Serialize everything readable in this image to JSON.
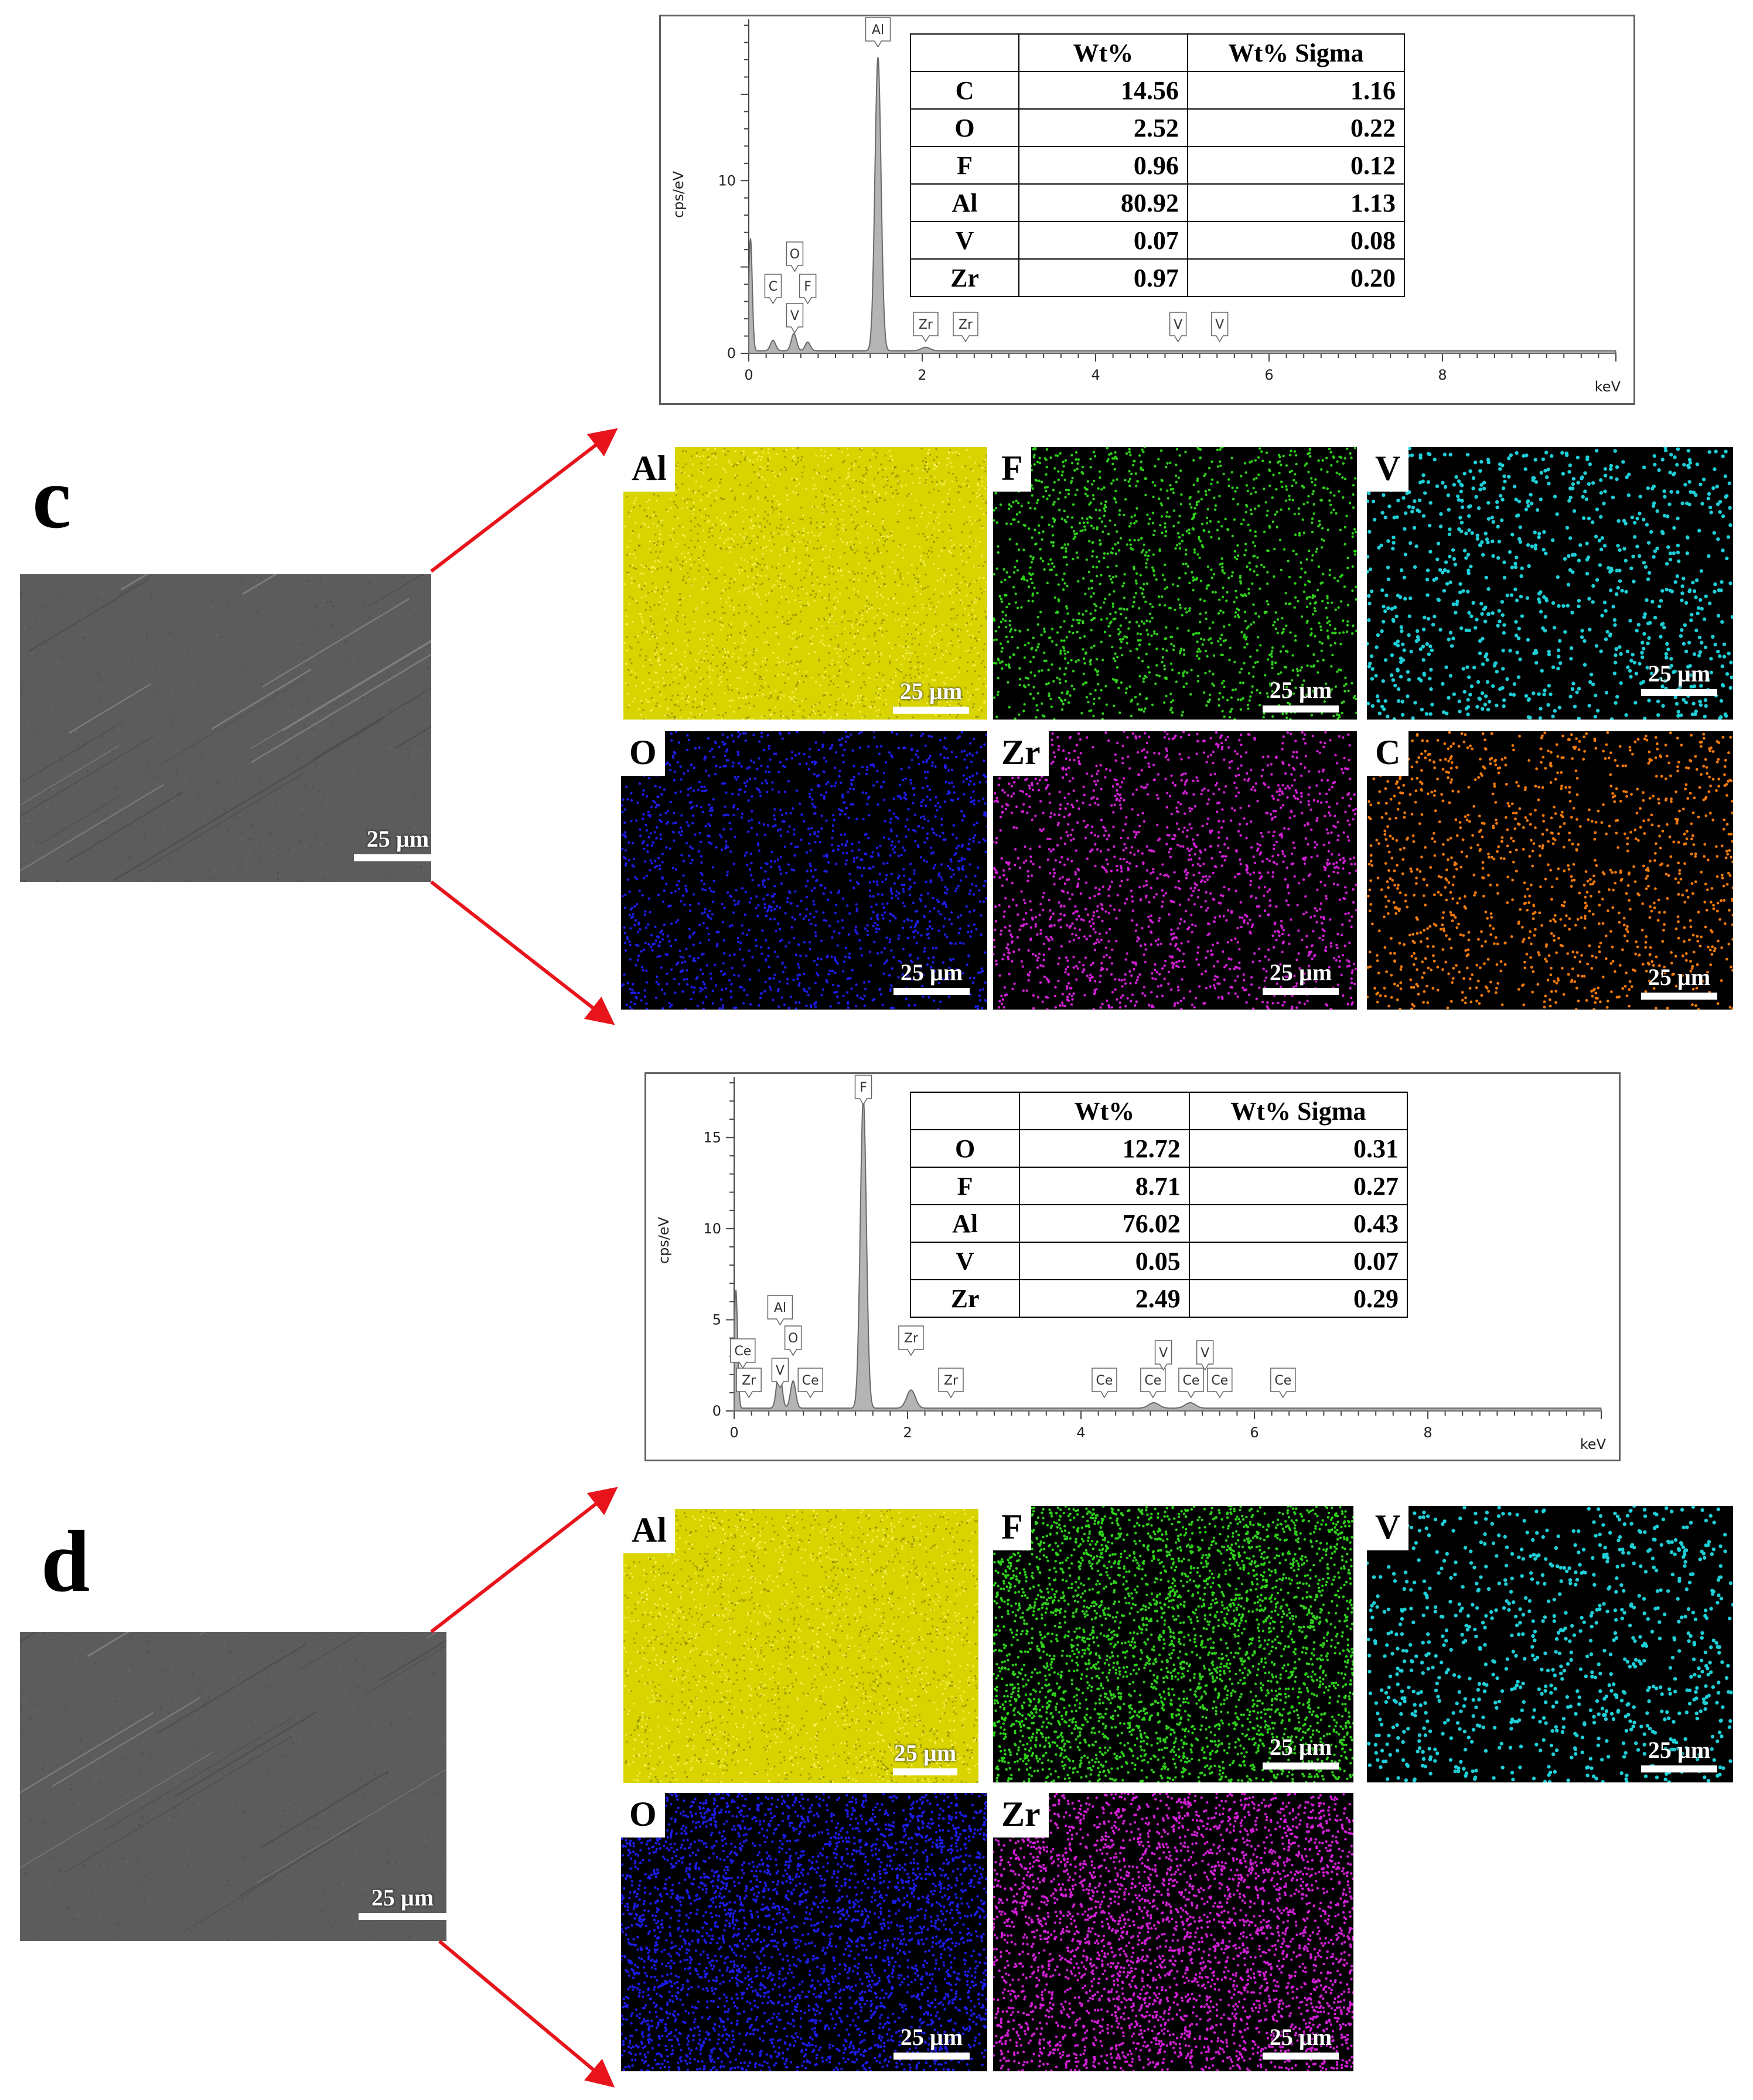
{
  "panels": [
    {
      "letter": "c",
      "sem_scalebar": "25 µm",
      "spectrum": {
        "axis_unit_x": "keV",
        "axis_unit_y": "cps/eV",
        "x_ticks": [
          "0",
          "2",
          "4",
          "6",
          "8"
        ],
        "y_ticks": [
          "0",
          "10"
        ],
        "peak_labels": [
          "Al",
          "C",
          "O",
          "F",
          "V",
          "Zr",
          "Zr",
          "V",
          "V"
        ]
      },
      "table": {
        "headers": [
          "",
          "Wt%",
          "Wt% Sigma"
        ],
        "rows": [
          {
            "element": "C",
            "wt": "14.56",
            "sigma": "1.16"
          },
          {
            "element": "O",
            "wt": "2.52",
            "sigma": "0.22"
          },
          {
            "element": "F",
            "wt": "0.96",
            "sigma": "0.12"
          },
          {
            "element": "Al",
            "wt": "80.92",
            "sigma": "1.13"
          },
          {
            "element": "V",
            "wt": "0.07",
            "sigma": "0.08"
          },
          {
            "element": "Zr",
            "wt": "0.97",
            "sigma": "0.20"
          }
        ]
      },
      "maps": [
        {
          "element": "Al",
          "color": "#d9d400",
          "scalebar": "25 µm"
        },
        {
          "element": "F",
          "color": "#2ed11a",
          "scalebar": "25 µm"
        },
        {
          "element": "V",
          "color": "#1ecfd8",
          "scalebar": "25 µm"
        },
        {
          "element": "O",
          "color": "#1d1de8",
          "scalebar": "25 µm"
        },
        {
          "element": "Zr",
          "color": "#d21fd6",
          "scalebar": "25 µm"
        },
        {
          "element": "C",
          "color": "#f07a0c",
          "scalebar": "25 µm"
        }
      ]
    },
    {
      "letter": "d",
      "sem_scalebar": "25 µm",
      "spectrum": {
        "axis_unit_x": "keV",
        "axis_unit_y": "cps/eV",
        "x_ticks": [
          "0",
          "2",
          "4",
          "6",
          "8"
        ],
        "y_ticks": [
          "0",
          "5",
          "10",
          "15"
        ],
        "peak_labels": [
          "Al",
          "O",
          "F",
          "Ce",
          "Zr",
          "V",
          "Ce",
          "Zr",
          "Zr",
          "Ce",
          "Ce",
          "V",
          "V",
          "Ce",
          "Ce",
          "Ce"
        ]
      },
      "table": {
        "headers": [
          "",
          "Wt%",
          "Wt% Sigma"
        ],
        "rows": [
          {
            "element": "O",
            "wt": "12.72",
            "sigma": "0.31"
          },
          {
            "element": "F",
            "wt": "8.71",
            "sigma": "0.27"
          },
          {
            "element": "Al",
            "wt": "76.02",
            "sigma": "0.43"
          },
          {
            "element": "V",
            "wt": "0.05",
            "sigma": "0.07"
          },
          {
            "element": "Zr",
            "wt": "2.49",
            "sigma": "0.29"
          }
        ]
      },
      "maps": [
        {
          "element": "Al",
          "color": "#d9d400",
          "scalebar": "25 µm"
        },
        {
          "element": "F",
          "color": "#2ed11a",
          "scalebar": "25 µm"
        },
        {
          "element": "V",
          "color": "#1ecfd8",
          "scalebar": "25 µm"
        },
        {
          "element": "O",
          "color": "#1d1de8",
          "scalebar": "25 µm"
        },
        {
          "element": "Zr",
          "color": "#d21fd6",
          "scalebar": "25 µm"
        }
      ]
    }
  ],
  "arrow_color": "#e8141c"
}
